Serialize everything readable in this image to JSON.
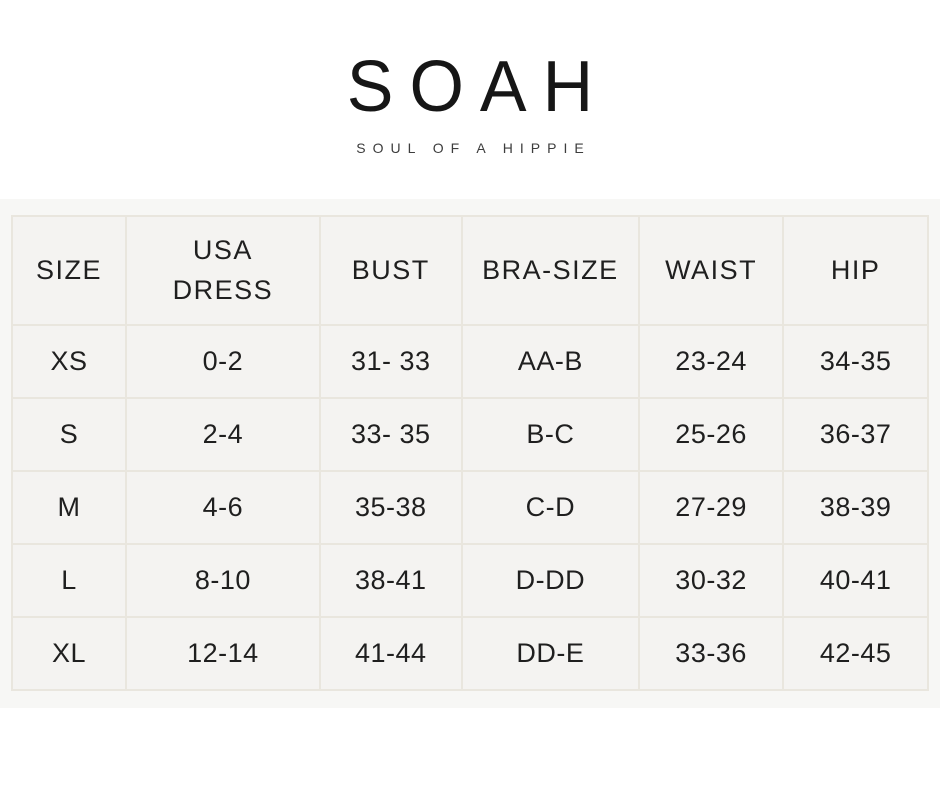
{
  "brand": {
    "logo": "SOAH",
    "tagline": "SOUL OF A HIPPIE"
  },
  "chart_data": {
    "type": "table",
    "columns": [
      "SIZE",
      "USA DRESS",
      "BUST",
      "BRA-SIZE",
      "WAIST",
      "HIP"
    ],
    "rows": [
      [
        "XS",
        "0-2",
        "31- 33",
        "AA-B",
        "23-24",
        "34-35"
      ],
      [
        "S",
        "2-4",
        "33- 35",
        "B-C",
        "25-26",
        "36-37"
      ],
      [
        "M",
        "4-6",
        "35-38",
        "C-D",
        "27-29",
        "38-39"
      ],
      [
        "L",
        "8-10",
        "38-41",
        "D-DD",
        "30-32",
        "40-41"
      ],
      [
        "XL",
        "12-14",
        "41-44",
        "DD-E",
        "33-36",
        "42-45"
      ]
    ]
  },
  "colors": {
    "page_background": "#ffffff",
    "band_background": "#f7f7f5",
    "cell_background": "#f4f3f1",
    "cell_border": "#e9e6de",
    "logo_text": "#161616",
    "tagline_text": "#3d3d3d",
    "table_text": "#1f1f1f"
  }
}
